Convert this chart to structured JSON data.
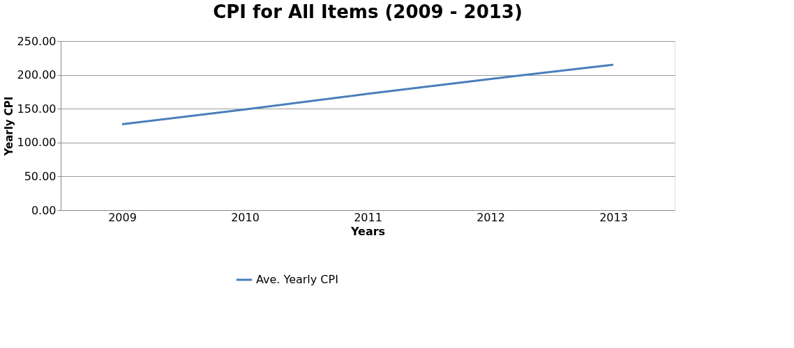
{
  "chart_data": {
    "type": "line",
    "title": "CPI for All Items (2009 - 2013)",
    "xlabel": "Years",
    "ylabel": "Yearly CPI",
    "categories": [
      "2009",
      "2010",
      "2011",
      "2012",
      "2013"
    ],
    "series": [
      {
        "name": "Ave. Yearly CPI",
        "color": "#4a7ebb",
        "values": [
          127,
          149,
          172,
          194,
          215
        ]
      }
    ],
    "ylim": [
      0,
      250
    ],
    "yticks": [
      {
        "value": 0,
        "label": "0.00"
      },
      {
        "value": 50,
        "label": "50.00"
      },
      {
        "value": 100,
        "label": "100.00"
      },
      {
        "value": 150,
        "label": "150.00"
      },
      {
        "value": 200,
        "label": "200.00"
      },
      {
        "value": 250,
        "label": "250.00"
      }
    ],
    "grid": "y",
    "legend": "bottom",
    "marker": "none",
    "line_style": "solid"
  }
}
